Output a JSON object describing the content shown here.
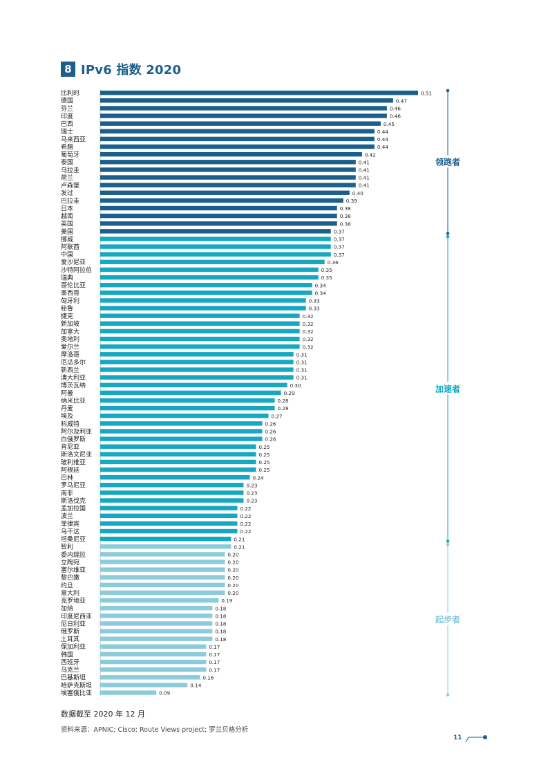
{
  "header": {
    "number": "8",
    "title": "IPv6 指数 2020"
  },
  "colors": {
    "leader": "#1b5f8c",
    "accelerator": "#16a8c2",
    "starter": "#8ccbdb",
    "title": "#1b5f8c"
  },
  "groups": [
    {
      "label": "领跑者",
      "color": "#1b5f8c",
      "first": 0,
      "last": 18
    },
    {
      "label": "加速者",
      "color": "#16a8c2",
      "first": 19,
      "last": 58
    },
    {
      "label": "起步者",
      "color": "#8ccbdb",
      "first": 59,
      "last": 78
    }
  ],
  "chart_data": {
    "type": "bar",
    "orientation": "horizontal",
    "xlim": [
      0,
      0.51
    ],
    "categories": [
      "比利时",
      "德国",
      "芬兰",
      "印度",
      "巴西",
      "瑞士",
      "马来西亚",
      "希腊",
      "葡萄牙",
      "泰国",
      "乌拉圭",
      "荷兰",
      "卢森堡",
      "发过",
      "巴拉圭",
      "日本",
      "越南",
      "英国",
      "美国",
      "挪威",
      "阿联酋",
      "中国",
      "爱沙尼亚",
      "沙特阿拉伯",
      "瑞典",
      "哥伦比亚",
      "墨西哥",
      "匈牙利",
      "秘鲁",
      "捷克",
      "新加坡",
      "加拿大",
      "奥地利",
      "爱尔兰",
      "摩洛哥",
      "厄瓜多尔",
      "新西兰",
      "澳大利亚",
      "博茨瓦纳",
      "阿曼",
      "纳米比亚",
      "丹麦",
      "埃及",
      "科威特",
      "阿尔及利亚",
      "白俄罗斯",
      "肯尼亚",
      "斯洛文尼亚",
      "玻利维亚",
      "阿根廷",
      "巴林",
      "罗马尼亚",
      "南非",
      "斯洛伐克",
      "孟加拉国",
      "波兰",
      "菲律宾",
      "乌干达",
      "坦桑尼亚",
      "智利",
      "委内瑞拉",
      "立陶宛",
      "塞尔维亚",
      "黎巴嫩",
      "约旦",
      "意大利",
      "克罗地亚",
      "加纳",
      "印度尼西亚",
      "尼日利亚",
      "俄罗斯",
      "土耳其",
      "保加利亚",
      "韩国",
      "西班牙",
      "乌克兰",
      "巴基斯坦",
      "哈萨克斯坦",
      "埃塞俄比亚"
    ],
    "values": [
      0.51,
      0.47,
      0.46,
      0.46,
      0.45,
      0.44,
      0.44,
      0.44,
      0.42,
      0.41,
      0.41,
      0.41,
      0.41,
      0.4,
      0.39,
      0.38,
      0.38,
      0.38,
      0.37,
      0.37,
      0.37,
      0.37,
      0.36,
      0.35,
      0.35,
      0.34,
      0.34,
      0.33,
      0.33,
      0.32,
      0.32,
      0.32,
      0.32,
      0.32,
      0.31,
      0.31,
      0.31,
      0.31,
      0.3,
      0.29,
      0.28,
      0.28,
      0.27,
      0.26,
      0.26,
      0.26,
      0.25,
      0.25,
      0.25,
      0.25,
      0.24,
      0.23,
      0.23,
      0.23,
      0.22,
      0.22,
      0.22,
      0.22,
      0.21,
      0.21,
      0.2,
      0.2,
      0.2,
      0.2,
      0.2,
      0.2,
      0.19,
      0.18,
      0.18,
      0.18,
      0.18,
      0.18,
      0.17,
      0.17,
      0.17,
      0.17,
      0.16,
      0.14,
      0.09
    ],
    "value_labels": [
      "0.51",
      "0.47",
      "0.46",
      "0.46",
      "0.45",
      "0.44",
      "0.44",
      "0.44",
      "0.42",
      "0.41",
      "0.41",
      "0.41",
      "0.41",
      "0.40",
      "0.39",
      "0.38",
      "0.38",
      "0.38",
      "0.37",
      "0.37",
      "0.37",
      "0.37",
      "0.36",
      "0.35",
      "0.35",
      "0.34",
      "0.34",
      "0.33",
      "0.33",
      "0.32",
      "0.32",
      "0.32",
      "0.32",
      "0.32",
      "0.31",
      "0.31",
      "0.31",
      "0.31",
      "0.30",
      "0.29",
      "0.28",
      "0.28",
      "0.27",
      "0.26",
      "0.26",
      "0.26",
      "0.25",
      "0.25",
      "0.25",
      "0.25",
      "0.24",
      "0.23",
      "0.23",
      "0.23",
      "0.22",
      "0.22",
      "0.22",
      "0.22",
      "0.21",
      "0.21",
      "0.20",
      "0.20",
      "0.20",
      "0.20",
      "0.20",
      "0.20",
      "0.19",
      "0.18",
      "0.18",
      "0.18",
      "0.18",
      "0.18",
      "0.17",
      "0.17",
      "0.17",
      "0.17",
      "0.16",
      "0.14",
      "0.09"
    ],
    "groups": [
      "leader",
      "leader",
      "leader",
      "leader",
      "leader",
      "leader",
      "leader",
      "leader",
      "leader",
      "leader",
      "leader",
      "leader",
      "leader",
      "leader",
      "leader",
      "leader",
      "leader",
      "leader",
      "leader",
      "accelerator",
      "accelerator",
      "accelerator",
      "accelerator",
      "accelerator",
      "accelerator",
      "accelerator",
      "accelerator",
      "accelerator",
      "accelerator",
      "accelerator",
      "accelerator",
      "accelerator",
      "accelerator",
      "accelerator",
      "accelerator",
      "accelerator",
      "accelerator",
      "accelerator",
      "accelerator",
      "accelerator",
      "accelerator",
      "accelerator",
      "accelerator",
      "accelerator",
      "accelerator",
      "accelerator",
      "accelerator",
      "accelerator",
      "accelerator",
      "accelerator",
      "accelerator",
      "accelerator",
      "accelerator",
      "accelerator",
      "accelerator",
      "accelerator",
      "accelerator",
      "accelerator",
      "accelerator",
      "starter",
      "starter",
      "starter",
      "starter",
      "starter",
      "starter",
      "starter",
      "starter",
      "starter",
      "starter",
      "starter",
      "starter",
      "starter",
      "starter",
      "starter",
      "starter",
      "starter",
      "starter",
      "starter",
      "starter"
    ],
    "grid": false,
    "legend": "right (group labels along bracket lines)"
  },
  "footnote": "数据截至 2020 年 12 月",
  "source": "资料来源：APNIC; Cisco; Route Views project; 罗兰贝格分析",
  "page_number": "11"
}
